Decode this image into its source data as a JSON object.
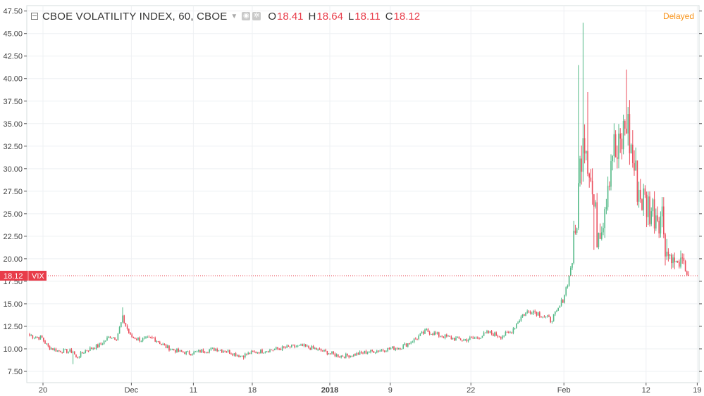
{
  "legend": {
    "title": "CBOE VOLATILITY INDEX, 60, CBOE",
    "o_label": "O",
    "o_value": "18.41",
    "h_label": "H",
    "h_value": "18.64",
    "l_label": "L",
    "l_value": "18.11",
    "c_label": "C",
    "c_value": "18.12"
  },
  "status": "Delayed",
  "price_tag": {
    "value": "18.12",
    "symbol": "VIX"
  },
  "colors": {
    "up": "#53b987",
    "down": "#eb4d5c",
    "tag": "#e83c4a",
    "delayed": "#f7931a",
    "grid": "#eef0f3"
  },
  "chart_data": {
    "type": "candlestick",
    "title": "CBOE VOLATILITY INDEX, 60, CBOE",
    "ylim": [
      6.25,
      48.1
    ],
    "y_ticks": [
      "7.50",
      "10.00",
      "12.50",
      "15.00",
      "17.50",
      "20.00",
      "22.50",
      "25.00",
      "27.50",
      "30.00",
      "32.50",
      "35.00",
      "37.50",
      "40.00",
      "42.50",
      "45.00",
      "47.50"
    ],
    "x_ticks": [
      {
        "label": "20",
        "idx": 0
      },
      {
        "label": "Dec",
        "idx": 57
      },
      {
        "label": "11",
        "idx": 97
      },
      {
        "label": "18",
        "idx": 135
      },
      {
        "label": "2018",
        "idx": 185
      },
      {
        "label": "9",
        "idx": 224
      },
      {
        "label": "22",
        "idx": 276
      },
      {
        "label": "Feb",
        "idx": 336
      },
      {
        "label": "12",
        "idx": 389
      },
      {
        "label": "19",
        "idx": 422
      }
    ],
    "last_price": 18.12,
    "path": [
      [
        0,
        11.5
      ],
      [
        8,
        11.2
      ],
      [
        12,
        10.2
      ],
      [
        18,
        9.8
      ],
      [
        28,
        9.7
      ],
      [
        30,
        9.0
      ],
      [
        36,
        9.8
      ],
      [
        45,
        10.4
      ],
      [
        52,
        11.4
      ],
      [
        56,
        11.2
      ],
      [
        60,
        13.4
      ],
      [
        65,
        11.4
      ],
      [
        72,
        11.0
      ],
      [
        80,
        11.2
      ],
      [
        88,
        10.2
      ],
      [
        96,
        9.7
      ],
      [
        104,
        9.5
      ],
      [
        112,
        9.8
      ],
      [
        120,
        10.0
      ],
      [
        128,
        9.7
      ],
      [
        136,
        9.2
      ],
      [
        144,
        9.6
      ],
      [
        152,
        9.8
      ],
      [
        160,
        10.0
      ],
      [
        168,
        10.2
      ],
      [
        176,
        10.3
      ],
      [
        184,
        10.0
      ],
      [
        192,
        9.6
      ],
      [
        200,
        9.2
      ],
      [
        208,
        9.3
      ],
      [
        216,
        9.6
      ],
      [
        224,
        9.8
      ],
      [
        232,
        10.0
      ],
      [
        240,
        10.2
      ],
      [
        248,
        11.0
      ],
      [
        256,
        12.0
      ],
      [
        264,
        11.5
      ],
      [
        272,
        11.2
      ],
      [
        280,
        11.0
      ],
      [
        288,
        11.2
      ],
      [
        296,
        11.8
      ],
      [
        304,
        11.4
      ],
      [
        310,
        11.8
      ],
      [
        318,
        13.8
      ],
      [
        324,
        14.3
      ],
      [
        330,
        13.8
      ],
      [
        336,
        13.2
      ],
      [
        340,
        14.0
      ],
      [
        344,
        15.5
      ],
      [
        348,
        18.0
      ],
      [
        352,
        22.5
      ],
      [
        355,
        30.0
      ],
      [
        357,
        35.0
      ],
      [
        360,
        32.0
      ],
      [
        363,
        27.0
      ],
      [
        366,
        23.0
      ],
      [
        370,
        25.0
      ],
      [
        373,
        29.0
      ],
      [
        376,
        32.5
      ],
      [
        379,
        31.0
      ],
      [
        382,
        33.0
      ],
      [
        385,
        35.5
      ],
      [
        388,
        32.0
      ],
      [
        391,
        29.0
      ],
      [
        394,
        27.0
      ],
      [
        397,
        26.2
      ],
      [
        401,
        25.5
      ],
      [
        405,
        25.2
      ],
      [
        408,
        24.8
      ],
      [
        411,
        20.8
      ],
      [
        414,
        20.0
      ],
      [
        418,
        19.4
      ],
      [
        421,
        19.8
      ],
      [
        424,
        18.4
      ],
      [
        425,
        18.12
      ]
    ],
    "spikes": [
      {
        "idx": 60,
        "high": 14.6
      },
      {
        "idx": 28,
        "low": 8.3
      },
      {
        "idx": 138,
        "low": 8.8
      },
      {
        "idx": 357,
        "high": 46.2
      },
      {
        "idx": 354,
        "high": 41.5
      },
      {
        "idx": 360,
        "high": 38.5
      },
      {
        "idx": 364,
        "low": 21.0
      },
      {
        "idx": 385,
        "high": 41.0
      },
      {
        "idx": 383,
        "high": 36.0
      },
      {
        "idx": 392,
        "high": 30.5
      },
      {
        "idx": 411,
        "high": 22.2
      },
      {
        "idx": 421,
        "high": 20.6
      }
    ]
  }
}
